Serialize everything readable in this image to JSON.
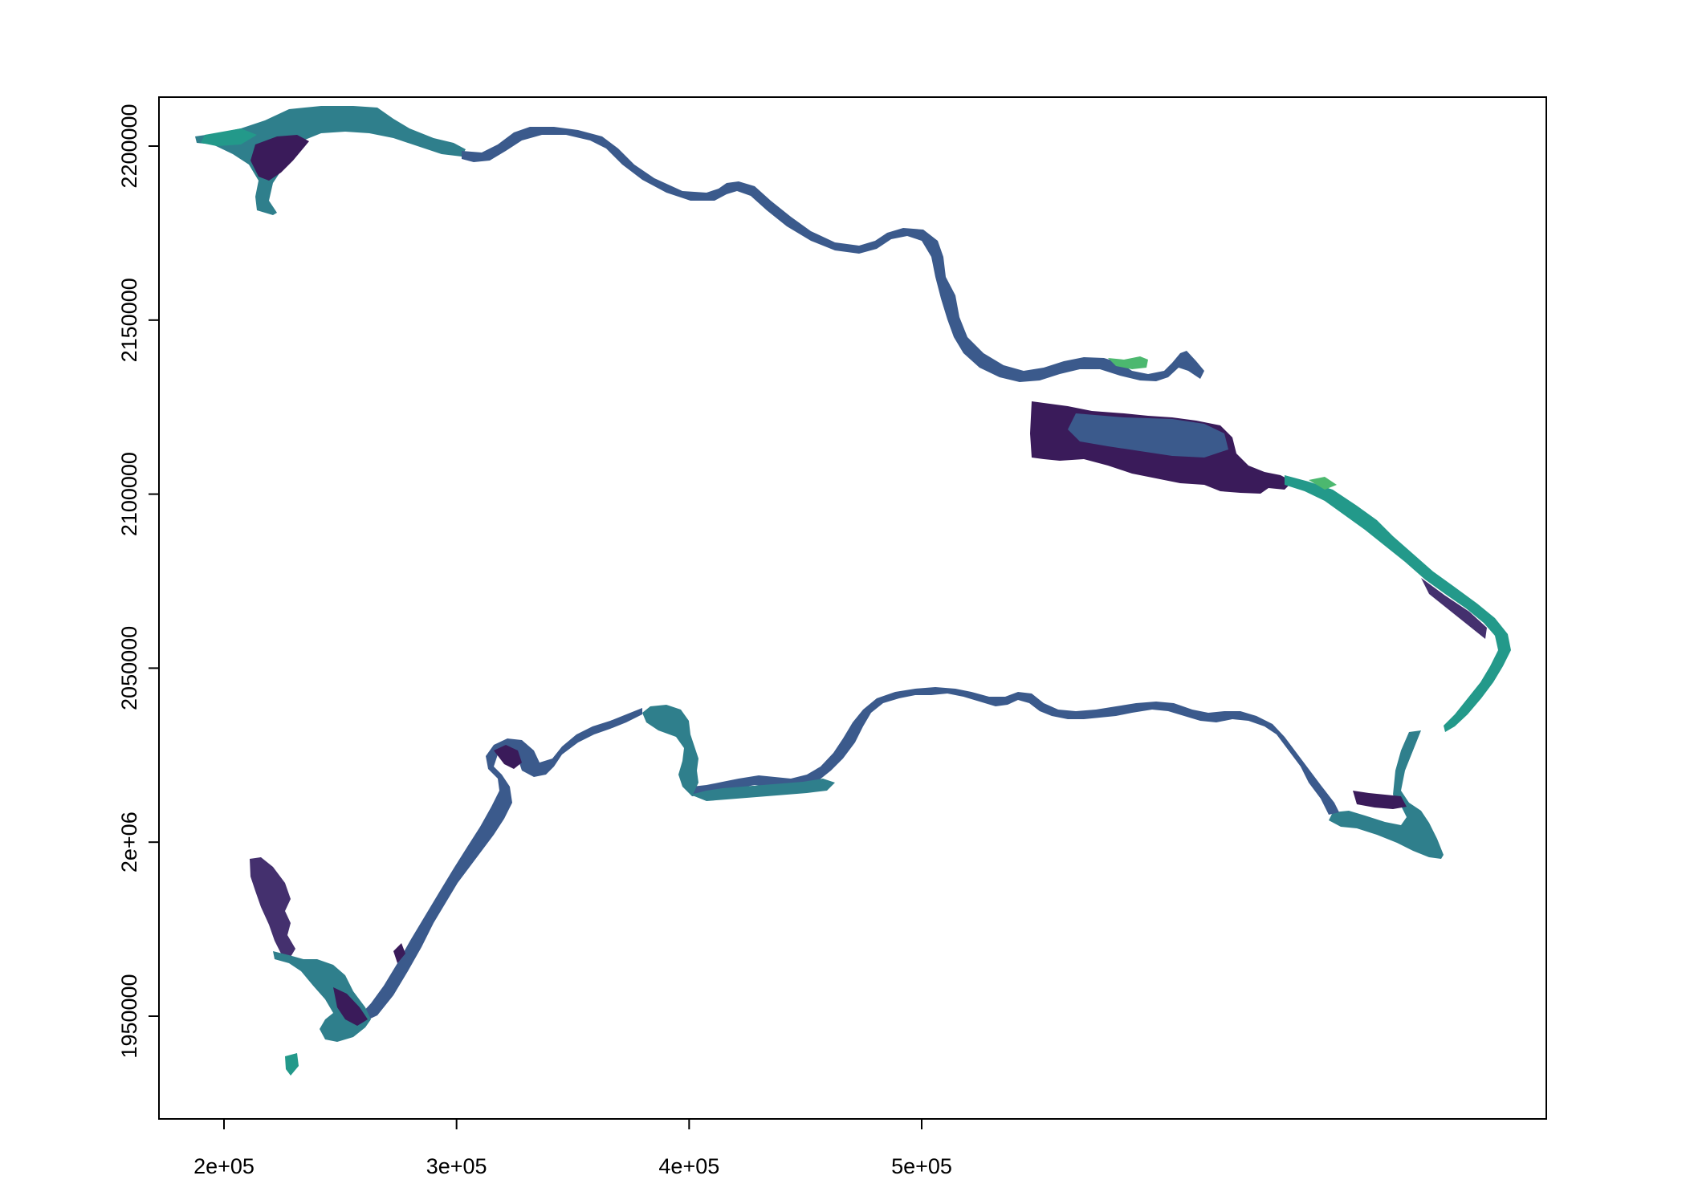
{
  "map": {
    "x_axis": {
      "ticks": [
        {
          "value": 200000,
          "label": "2e+05"
        },
        {
          "value": 300000,
          "label": "3e+05"
        },
        {
          "value": 400000,
          "label": "4e+05"
        },
        {
          "value": 500000,
          "label": "5e+05"
        }
      ]
    },
    "y_axis": {
      "ticks": [
        {
          "value": 1950000,
          "label": "1950000"
        },
        {
          "value": 2000000,
          "label": "2e+06"
        },
        {
          "value": 2050000,
          "label": "2050000"
        },
        {
          "value": 2100000,
          "label": "2100000"
        },
        {
          "value": 2150000,
          "label": "2150000"
        },
        {
          "value": 2200000,
          "label": "2200000"
        }
      ]
    },
    "palette": {
      "dark": "#3a1b5a",
      "deep": "#44306e",
      "blue": "#3b5a8c",
      "teal": "#2f7f8c",
      "seagreen": "#23998a",
      "green": "#4cb86f",
      "lime": "#9ad64a"
    }
  }
}
